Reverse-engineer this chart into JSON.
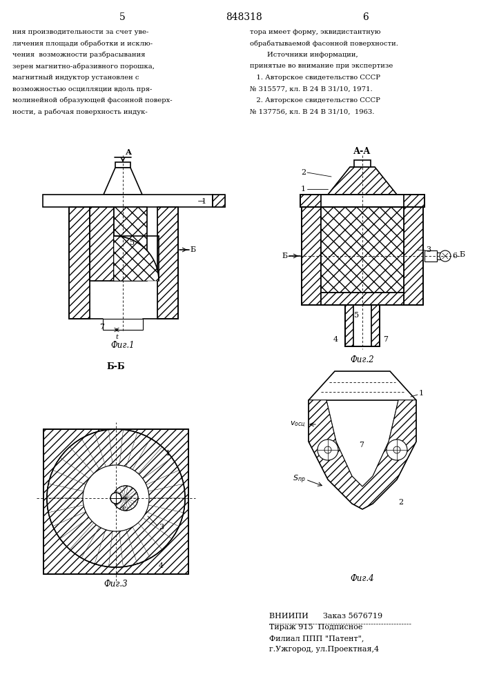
{
  "page_title": "848318",
  "page_left": "5",
  "page_right": "6",
  "text_left": [
    "ния производительности за счет уве-",
    "личения площади обработки и исклю-",
    "чения  возможности разбрасывания",
    "зерен магнитно-абразивного порошка,",
    "магнитный индуктор установлен с",
    "возможностью осцилляции вдоль пря-",
    "молинейной образующей фасонной поверх-",
    "ности, а рабочая поверхность индук-"
  ],
  "text_right": [
    "тора имеет форму, эквидистантную",
    "обрабатываемой фасонной поверхности.",
    "        Источники информации,",
    "принятые во внимание при экспертизе",
    "   1. Авторское свидетельство СССР",
    "№ 315577, кл. В 24 В 31/10, 1971.",
    "   2. Авторское свидетельство СССР",
    "№ 137756, кл. В 24 В 31/10,  1963."
  ],
  "fig1_label": "Фиг.1",
  "fig2_label": "Фиг.2",
  "fig3_label": "Фиг.3",
  "fig4_label": "Фиг.4",
  "section_aa": "А-А",
  "section_bb": "Б-Б",
  "footer_line1": "ВНИИПИ      Заказ 5676719",
  "footer_line2": "Тираж 915  Подписное",
  "footer_line3": "Филиал ППП \"Патент\",",
  "footer_line4": "г.Ужгород, ул.Проектная,4",
  "bg_color": "#ffffff",
  "line_color": "#000000"
}
